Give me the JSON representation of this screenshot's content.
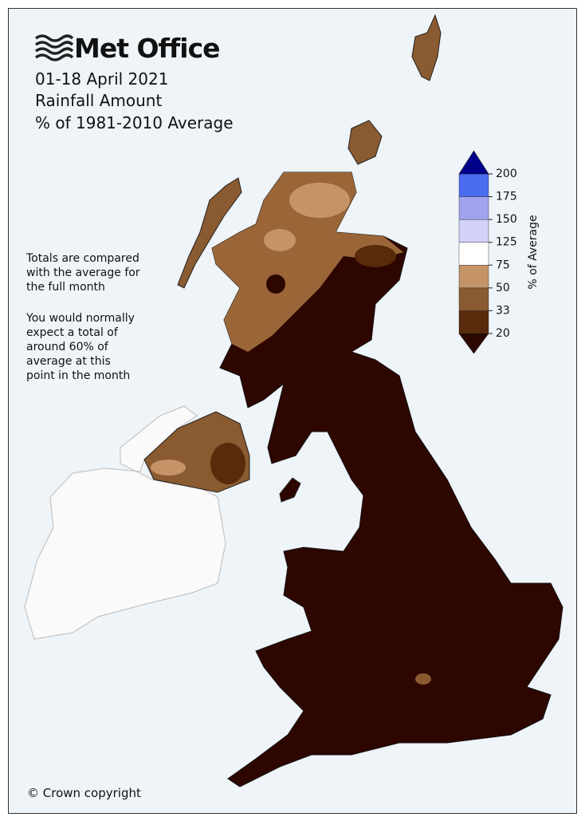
{
  "header": {
    "brand": "Met Office",
    "date": "01-18 April 2021",
    "title": "Rainfall Amount",
    "subtitle": "% of 1981-2010 Average"
  },
  "note": {
    "paragraphs": [
      {
        "lines": [
          "Totals are compared",
          "with the average for",
          "the full month"
        ]
      },
      {
        "lines": [
          "You would normally",
          "expect a total of",
          "around 60% of",
          "average at this",
          "point in the month"
        ]
      }
    ]
  },
  "legend": {
    "label": "% of Average",
    "ticks": [
      20,
      33,
      50,
      75,
      125,
      150,
      175,
      200
    ],
    "colors": [
      "#2a0800",
      "#5a2a0c",
      "#8a5a30",
      "#c49468",
      "#ffffff",
      "#d2d2f8",
      "#a2a2ee",
      "#4a6cf0",
      "#00008b"
    ]
  },
  "footer": {
    "copyright": "© Crown copyright"
  }
}
